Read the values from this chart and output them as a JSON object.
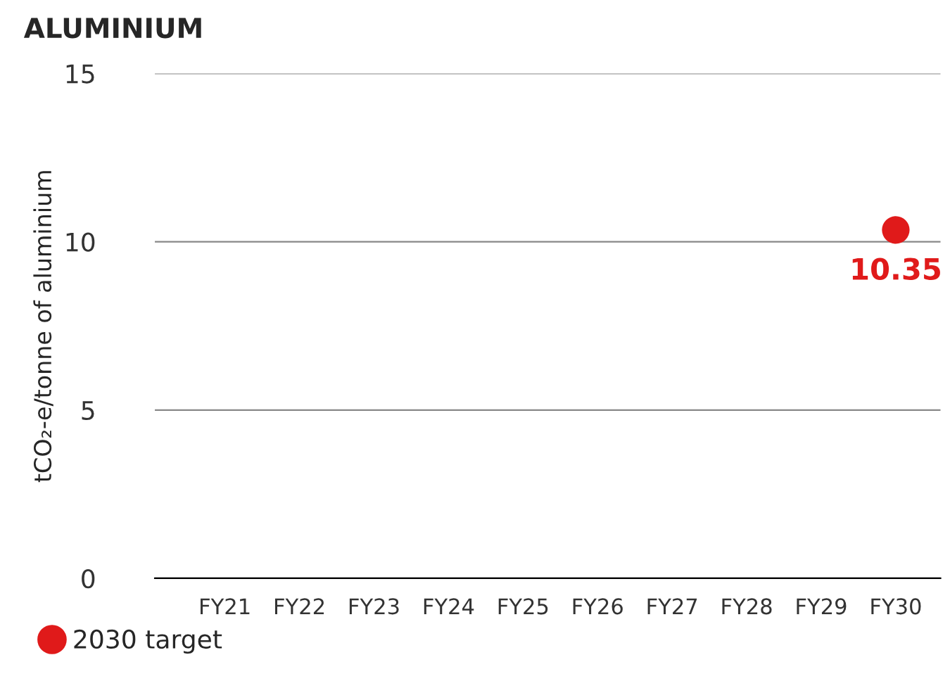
{
  "chart_data": {
    "type": "scatter",
    "title": "ALUMINIUM",
    "ylabel": "tCO₂-e/tonne of aluminium",
    "categories": [
      "FY21",
      "FY22",
      "FY23",
      "FY24",
      "FY25",
      "FY26",
      "FY27",
      "FY28",
      "FY29",
      "FY30"
    ],
    "series": [
      {
        "name": "2030 target",
        "color": "#e01a1a",
        "values": [
          null,
          null,
          null,
          null,
          null,
          null,
          null,
          null,
          null,
          10.35
        ]
      }
    ],
    "ylim": [
      0,
      15
    ],
    "yticks": [
      0,
      5,
      10,
      15
    ],
    "grid": "y",
    "legend": "bottom left",
    "marker": "circle",
    "data_labels": true
  }
}
